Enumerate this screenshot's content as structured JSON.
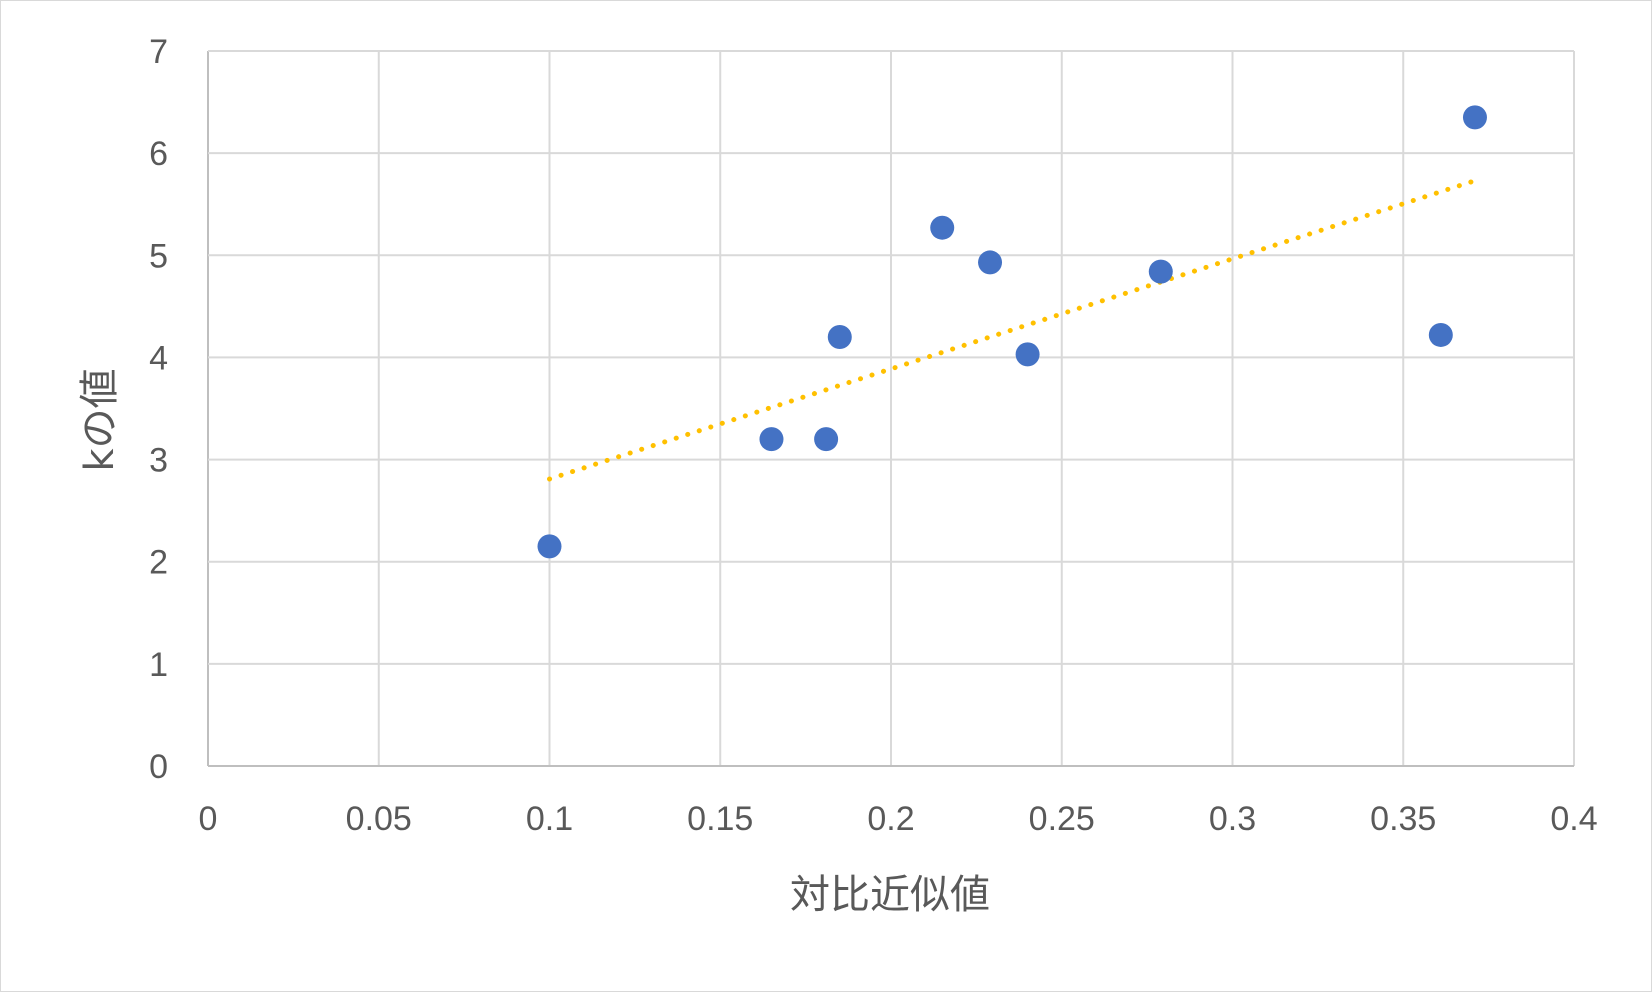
{
  "chart_data": {
    "type": "scatter",
    "title": "",
    "xlabel": "対比近似値",
    "ylabel": "kの値",
    "xlim": [
      0,
      0.4
    ],
    "ylim": [
      0,
      7
    ],
    "xticks": [
      "0",
      "0.05",
      "0.1",
      "0.15",
      "0.2",
      "0.25",
      "0.3",
      "0.35",
      "0.4"
    ],
    "yticks": [
      "0",
      "1",
      "2",
      "3",
      "4",
      "5",
      "6",
      "7"
    ],
    "grid": true,
    "legend": "none",
    "series": [
      {
        "color": "#4472c4",
        "points": [
          {
            "x": 0.1,
            "y": 2.15
          },
          {
            "x": 0.165,
            "y": 3.2
          },
          {
            "x": 0.181,
            "y": 3.2
          },
          {
            "x": 0.185,
            "y": 4.2
          },
          {
            "x": 0.215,
            "y": 5.27
          },
          {
            "x": 0.229,
            "y": 4.93
          },
          {
            "x": 0.24,
            "y": 4.03
          },
          {
            "x": 0.279,
            "y": 4.84
          },
          {
            "x": 0.361,
            "y": 4.22
          },
          {
            "x": 0.371,
            "y": 6.35
          }
        ]
      }
    ],
    "trendline": {
      "type": "linear",
      "color": "#ffc000",
      "style": "dotted",
      "x": [
        0.1,
        0.37
      ],
      "y": [
        2.81,
        5.72
      ]
    }
  }
}
